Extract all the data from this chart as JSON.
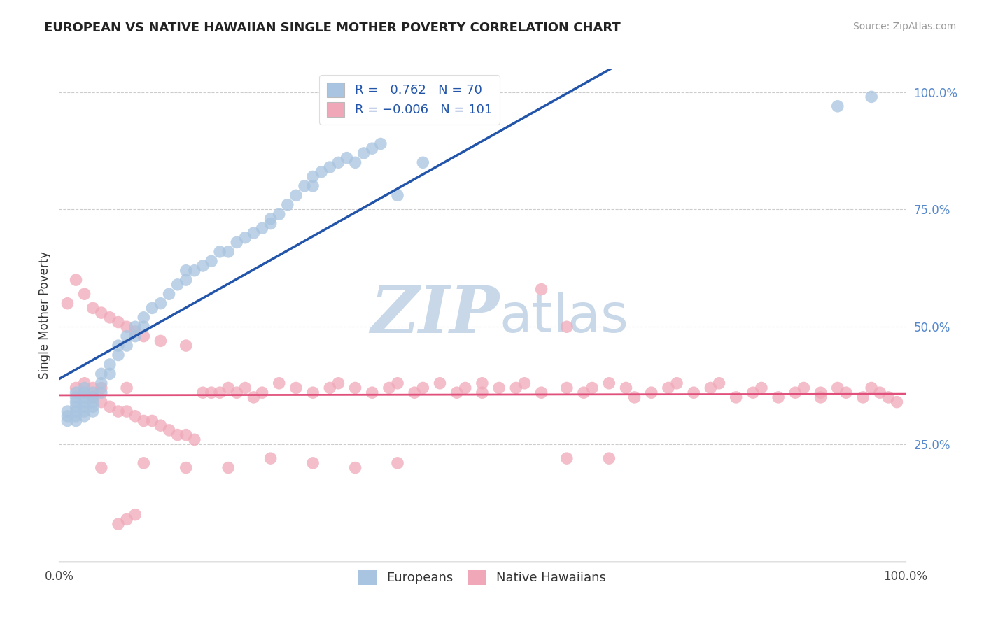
{
  "title": "EUROPEAN VS NATIVE HAWAIIAN SINGLE MOTHER POVERTY CORRELATION CHART",
  "source": "Source: ZipAtlas.com",
  "ylabel": "Single Mother Poverty",
  "blue_R": 0.762,
  "blue_N": 70,
  "pink_R": -0.006,
  "pink_N": 101,
  "blue_color": "#A8C4E0",
  "pink_color": "#F0A8B8",
  "blue_line_color": "#2255AA",
  "pink_line_color": "#E0507A",
  "watermark_zip": "ZIP",
  "watermark_atlas": "atlas",
  "watermark_color": "#C8D8E8",
  "background_color": "#FFFFFF",
  "legend_label_blue": "Europeans",
  "legend_label_pink": "Native Hawaiians",
  "ytick_color": "#5588CC",
  "grid_color": "#CCCCCC",
  "xlim": [
    0.0,
    1.0
  ],
  "ylim": [
    0.0,
    1.05
  ],
  "yticks": [
    0.0,
    0.25,
    0.5,
    0.75,
    1.0
  ],
  "ytick_labels": [
    "0.0%",
    "25.0%",
    "50.0%",
    "75.0%",
    "100.0%"
  ],
  "blue_x": [
    0.01,
    0.01,
    0.01,
    0.02,
    0.02,
    0.02,
    0.02,
    0.02,
    0.02,
    0.02,
    0.03,
    0.03,
    0.03,
    0.03,
    0.03,
    0.03,
    0.03,
    0.04,
    0.04,
    0.04,
    0.04,
    0.04,
    0.05,
    0.05,
    0.05,
    0.06,
    0.06,
    0.07,
    0.07,
    0.08,
    0.08,
    0.09,
    0.09,
    0.1,
    0.1,
    0.11,
    0.12,
    0.13,
    0.14,
    0.15,
    0.15,
    0.16,
    0.17,
    0.18,
    0.19,
    0.2,
    0.21,
    0.22,
    0.23,
    0.24,
    0.25,
    0.25,
    0.26,
    0.27,
    0.28,
    0.29,
    0.3,
    0.3,
    0.31,
    0.32,
    0.33,
    0.34,
    0.35,
    0.36,
    0.37,
    0.38,
    0.4,
    0.43,
    0.92,
    0.96
  ],
  "blue_y": [
    0.3,
    0.31,
    0.32,
    0.3,
    0.31,
    0.32,
    0.33,
    0.34,
    0.35,
    0.36,
    0.31,
    0.32,
    0.33,
    0.34,
    0.35,
    0.36,
    0.37,
    0.32,
    0.33,
    0.34,
    0.35,
    0.36,
    0.36,
    0.38,
    0.4,
    0.4,
    0.42,
    0.44,
    0.46,
    0.46,
    0.48,
    0.48,
    0.5,
    0.5,
    0.52,
    0.54,
    0.55,
    0.57,
    0.59,
    0.6,
    0.62,
    0.62,
    0.63,
    0.64,
    0.66,
    0.66,
    0.68,
    0.69,
    0.7,
    0.71,
    0.72,
    0.73,
    0.74,
    0.76,
    0.78,
    0.8,
    0.8,
    0.82,
    0.83,
    0.84,
    0.85,
    0.86,
    0.85,
    0.87,
    0.88,
    0.89,
    0.78,
    0.85,
    0.97,
    0.99
  ],
  "pink_x": [
    0.01,
    0.02,
    0.02,
    0.03,
    0.03,
    0.03,
    0.04,
    0.04,
    0.04,
    0.05,
    0.05,
    0.05,
    0.06,
    0.06,
    0.07,
    0.07,
    0.08,
    0.08,
    0.08,
    0.09,
    0.09,
    0.1,
    0.1,
    0.11,
    0.12,
    0.12,
    0.13,
    0.14,
    0.15,
    0.15,
    0.16,
    0.17,
    0.18,
    0.19,
    0.2,
    0.21,
    0.22,
    0.23,
    0.24,
    0.26,
    0.28,
    0.3,
    0.32,
    0.33,
    0.35,
    0.37,
    0.39,
    0.4,
    0.42,
    0.43,
    0.45,
    0.47,
    0.48,
    0.5,
    0.5,
    0.52,
    0.54,
    0.55,
    0.57,
    0.57,
    0.6,
    0.6,
    0.62,
    0.63,
    0.65,
    0.67,
    0.68,
    0.7,
    0.72,
    0.73,
    0.75,
    0.77,
    0.78,
    0.8,
    0.82,
    0.83,
    0.85,
    0.87,
    0.88,
    0.9,
    0.9,
    0.92,
    0.93,
    0.95,
    0.96,
    0.97,
    0.98,
    0.99,
    0.6,
    0.65,
    0.35,
    0.4,
    0.25,
    0.3,
    0.2,
    0.15,
    0.1,
    0.05,
    0.07,
    0.08,
    0.09
  ],
  "pink_y": [
    0.55,
    0.37,
    0.6,
    0.36,
    0.38,
    0.57,
    0.35,
    0.37,
    0.54,
    0.34,
    0.37,
    0.53,
    0.33,
    0.52,
    0.32,
    0.51,
    0.32,
    0.5,
    0.37,
    0.31,
    0.49,
    0.3,
    0.48,
    0.3,
    0.29,
    0.47,
    0.28,
    0.27,
    0.27,
    0.46,
    0.26,
    0.36,
    0.36,
    0.36,
    0.37,
    0.36,
    0.37,
    0.35,
    0.36,
    0.38,
    0.37,
    0.36,
    0.37,
    0.38,
    0.37,
    0.36,
    0.37,
    0.38,
    0.36,
    0.37,
    0.38,
    0.36,
    0.37,
    0.36,
    0.38,
    0.37,
    0.37,
    0.38,
    0.36,
    0.58,
    0.37,
    0.5,
    0.36,
    0.37,
    0.38,
    0.37,
    0.35,
    0.36,
    0.37,
    0.38,
    0.36,
    0.37,
    0.38,
    0.35,
    0.36,
    0.37,
    0.35,
    0.36,
    0.37,
    0.35,
    0.36,
    0.37,
    0.36,
    0.35,
    0.37,
    0.36,
    0.35,
    0.34,
    0.22,
    0.22,
    0.2,
    0.21,
    0.22,
    0.21,
    0.2,
    0.2,
    0.21,
    0.2,
    0.08,
    0.09,
    0.1
  ]
}
